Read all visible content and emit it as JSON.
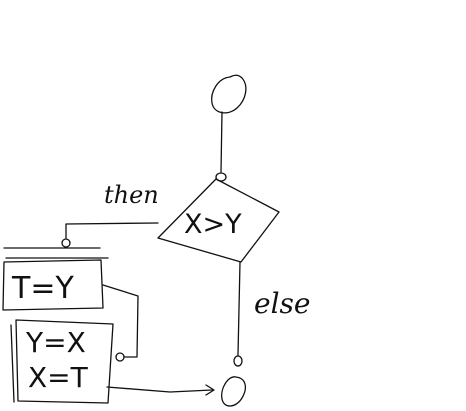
{
  "diagram": {
    "type": "flowchart",
    "condition": "X>Y",
    "branch_labels": {
      "then": "then",
      "else": "else"
    },
    "statements": [
      {
        "text": "T=Y"
      },
      {
        "lines": [
          "Y=X",
          "X=T"
        ]
      }
    ],
    "ink_color": "#111111",
    "background": "#ffffff"
  }
}
